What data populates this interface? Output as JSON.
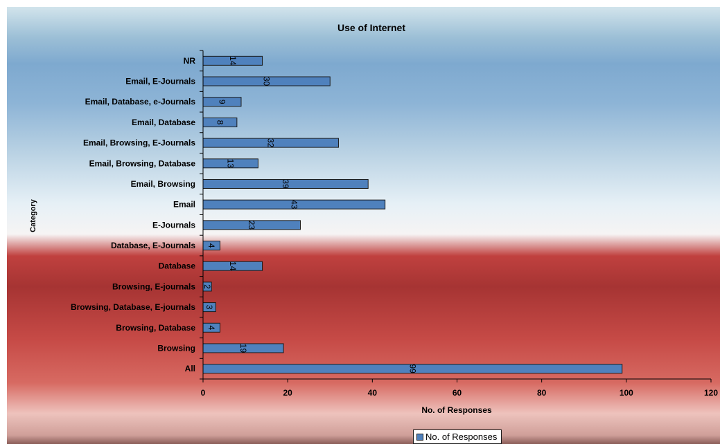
{
  "chart_data": {
    "type": "bar",
    "orientation": "horizontal",
    "title": "Use of Internet",
    "xlabel": "No. of Responses",
    "ylabel": "Category",
    "categories": [
      "NR",
      "Email, E-Journals",
      "Email, Database, e-Journals",
      "Email, Database",
      "Email, Browsing, E-Journals",
      "Email, Browsing, Database",
      "Email, Browsing",
      "Email",
      "E-Journals",
      "Database, E-Journals",
      "Database",
      "Browsing, E-journals",
      "Browsing, Database, E-journals",
      "Browsing, Database",
      "Browsing",
      "All"
    ],
    "series": [
      {
        "name": "No. of Responses",
        "values": [
          14,
          30,
          9,
          8,
          32,
          13,
          39,
          43,
          23,
          4,
          14,
          2,
          3,
          4,
          19,
          99
        ],
        "color": "#4f81bd"
      }
    ],
    "xlim": [
      0,
      120
    ],
    "xticks": [
      "0",
      "20",
      "40",
      "60",
      "80",
      "100",
      "120"
    ],
    "data_labels": true,
    "grid": false,
    "legend_position": "bottom"
  }
}
